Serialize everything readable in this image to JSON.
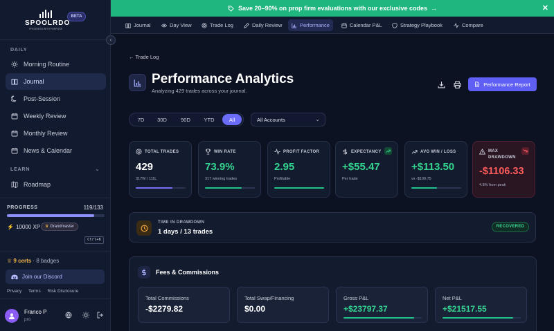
{
  "brand": {
    "name": "SPOOLRDO",
    "tagline": "PROGRESS WITH PURPOSE",
    "badge": "BETA"
  },
  "sidebar": {
    "daily_label": "DAILY",
    "daily_items": [
      {
        "label": "Morning Routine",
        "icon": "sun-icon"
      },
      {
        "label": "Journal",
        "icon": "book-icon",
        "active": true
      },
      {
        "label": "Post-Session",
        "icon": "moon-icon"
      },
      {
        "label": "Weekly Review",
        "icon": "calendar-icon"
      },
      {
        "label": "Monthly Review",
        "icon": "calendar-icon"
      },
      {
        "label": "News & Calendar",
        "icon": "calendar-icon"
      }
    ],
    "learn_label": "LEARN",
    "learn_items": [
      {
        "label": "Roadmap",
        "icon": "map-icon"
      }
    ],
    "progress": {
      "label": "PROGRESS",
      "value": "119/133",
      "fraction": 0.895
    },
    "xp": "10000 XP",
    "rank": "Grandmaster",
    "shortcut": "Ctrl+K",
    "certs": "9 certs",
    "badges": " · 8 badges",
    "discord": "Join our Discord",
    "links": [
      "Privacy",
      "Terms",
      "Risk Disclosure"
    ],
    "user": {
      "name": "Franco P",
      "role": "pro"
    }
  },
  "banner": {
    "text": "Save 20–90% on prop firm evaluations with our exclusive codes",
    "arrow": "→",
    "color": "#1fb67f"
  },
  "tabs": [
    {
      "label": "Journal",
      "icon": "book-icon"
    },
    {
      "label": "Day View",
      "icon": "eye-icon"
    },
    {
      "label": "Trade Log",
      "icon": "target-icon"
    },
    {
      "label": "Daily Review",
      "icon": "pencil-icon"
    },
    {
      "label": "Performance",
      "icon": "bar-chart-icon",
      "active": true
    },
    {
      "label": "Calendar P&L",
      "icon": "calendar-icon"
    },
    {
      "label": "Strategy Playbook",
      "icon": "shield-icon"
    },
    {
      "label": "Compare",
      "icon": "activity-icon"
    }
  ],
  "page": {
    "back": "Trade Log",
    "title": "Performance Analytics",
    "subtitle": "Analyzing 429 trades across your journal.",
    "report_button": "Performance Report",
    "ranges": [
      "7D",
      "30D",
      "90D",
      "YTD",
      "All"
    ],
    "active_range": "All",
    "account": "All Accounts"
  },
  "cards": [
    {
      "label": "TOTAL TRADES",
      "value": "429",
      "sub": "317W / 111L",
      "color": "#ffffff",
      "bar_color": "#7c6ff7",
      "bar_fraction": 0.74,
      "icon": "target-icon"
    },
    {
      "label": "WIN RATE",
      "value": "73.9%",
      "sub": "317 winning trades",
      "color": "#35d590",
      "bar_color": "#22c58b",
      "bar_fraction": 0.739,
      "icon": "trophy-icon"
    },
    {
      "label": "PROFIT FACTOR",
      "value": "2.95",
      "sub": "Profitable",
      "color": "#35d590",
      "bar_color": "#22c58b",
      "bar_fraction": 1.0,
      "icon": "activity-icon"
    },
    {
      "label": "EXPECTANCY",
      "value": "+$55.47",
      "sub": "Per trade",
      "color": "#35d590",
      "icon": "dollar-icon",
      "trend": "up"
    },
    {
      "label": "AVG WIN / LOSS",
      "value": "+$113.50",
      "sub": "vs -$109.75",
      "color": "#35d590",
      "bar_color": "#22c58b",
      "bar_fraction": 0.51,
      "icon": "trending-up-icon"
    },
    {
      "label": "MAX DRAWDOWN",
      "value": "-$1106.33",
      "sub": "4.8% from peak",
      "color": "#ff5c5c",
      "icon": "warning-icon",
      "trend": "down"
    }
  ],
  "drawdown": {
    "label": "TIME IN DRAWDOWN",
    "value": "1 days / 13 trades",
    "status": "RECOVERED"
  },
  "fees": {
    "title": "Fees & Commissions",
    "items": [
      {
        "label": "Total Commissions",
        "value": "-$2279.82",
        "color": "#ffffff"
      },
      {
        "label": "Total Swap/Financing",
        "value": "$0.00",
        "color": "#ffffff"
      },
      {
        "label": "Gross P&L",
        "value": "+$23797.37",
        "color": "#35d590",
        "bar_fraction": 0.9
      },
      {
        "label": "Net P&L",
        "value": "+$21517.55",
        "color": "#35d590",
        "bar_fraction": 0.9
      }
    ]
  }
}
